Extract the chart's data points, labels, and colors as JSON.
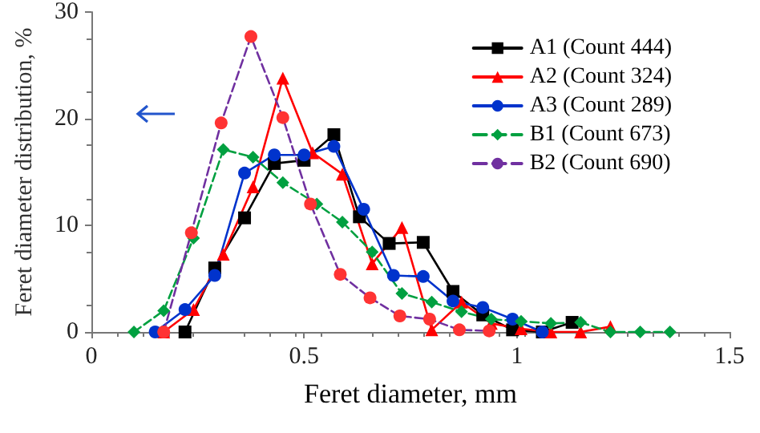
{
  "chart_data": {
    "type": "line",
    "xlabel": "Feret diameter, mm",
    "ylabel": "Feret diameter distribution, %",
    "xlim": [
      0,
      1.5
    ],
    "xticks": [
      0,
      0.5,
      1,
      1.5
    ],
    "ylim": [
      0,
      30
    ],
    "yticks": [
      0,
      10,
      20,
      30
    ],
    "grid": false,
    "legend": "top right",
    "series": [
      {
        "name": "A1 (Count 444)",
        "color": "#000000",
        "marker": "square",
        "line_style": "solid",
        "x": [
          0.22,
          0.29,
          0.36,
          0.43,
          0.5,
          0.57,
          0.63,
          0.7,
          0.78,
          0.85,
          0.92,
          0.99,
          1.06,
          1.13
        ],
        "values": [
          0,
          6,
          10.7,
          15.8,
          16.1,
          18.5,
          10.8,
          8.3,
          8.4,
          3.8,
          1.6,
          0.2,
          0,
          0.9
        ]
      },
      {
        "name": "A2 (Count 324)",
        "color": "#ff0000",
        "marker": "triangle",
        "line_style": "solid",
        "x": [
          0.17,
          0.24,
          0.31,
          0.38,
          0.45,
          0.52,
          0.59,
          0.66,
          0.73,
          0.8,
          0.87,
          0.94,
          1.01,
          1.08,
          1.15,
          1.22
        ],
        "values": [
          0,
          2.1,
          7.3,
          13.6,
          23.8,
          16.8,
          14.8,
          6.4,
          9.8,
          0.2,
          2.8,
          0.8,
          0.3,
          0,
          0,
          0.5
        ]
      },
      {
        "name": "A3 (Count 289)",
        "color": "#0033cc",
        "marker": "circle",
        "line_style": "solid",
        "x": [
          0.15,
          0.22,
          0.29,
          0.36,
          0.43,
          0.5,
          0.57,
          0.64,
          0.71,
          0.78,
          0.85,
          0.92,
          0.99,
          1.06
        ],
        "values": [
          0,
          2.1,
          5.3,
          14.9,
          16.6,
          16.6,
          17.4,
          11.5,
          5.3,
          5.2,
          2.9,
          2.3,
          1.2,
          0
        ]
      },
      {
        "name": "B1 (Count 673)",
        "color": "#00a040",
        "marker": "diamond",
        "line_style": "dashed",
        "x": [
          0.1,
          0.17,
          0.24,
          0.31,
          0.38,
          0.45,
          0.53,
          0.59,
          0.66,
          0.73,
          0.8,
          0.87,
          0.94,
          1.01,
          1.08,
          1.15,
          1.22,
          1.29,
          1.36
        ],
        "values": [
          0,
          2,
          8.8,
          17.1,
          16.4,
          14,
          12,
          10.3,
          7.5,
          3.6,
          2.8,
          1.9,
          1.2,
          1,
          0.8,
          0.9,
          0,
          0,
          0
        ]
      },
      {
        "name": "B2 (Count 690)",
        "color": "#7030a0",
        "colors": [
          "#ff3333",
          "#ff3333",
          "#ff3333",
          "#ff3333",
          "#ff3333",
          "#ff3333",
          "#ff3333",
          "#ff3333",
          "#ff3333",
          "#ff3333",
          "#ff3333",
          "#ff3333"
        ],
        "marker": "circle",
        "line_style": "dashed",
        "x": [
          0.17,
          0.235,
          0.305,
          0.375,
          0.45,
          0.515,
          0.585,
          0.655,
          0.725,
          0.795,
          0.865,
          0.935
        ],
        "values": [
          0,
          9.3,
          19.6,
          27.7,
          20.1,
          12,
          5.4,
          3.2,
          1.5,
          1.2,
          0.2,
          0.1
        ]
      }
    ]
  }
}
